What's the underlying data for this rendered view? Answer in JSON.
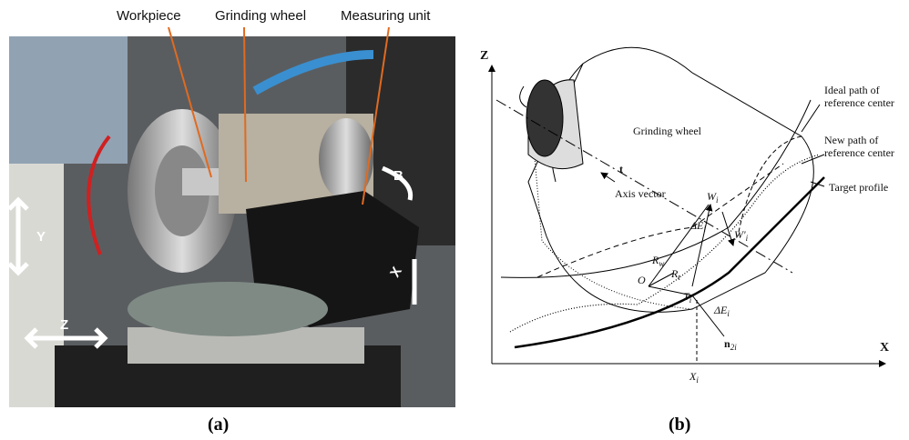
{
  "panel_a": {
    "labels": [
      "Workpiece",
      "Grinding wheel",
      "Measuring unit"
    ],
    "axes": [
      "Y",
      "Z",
      "X",
      "B"
    ],
    "caption": "(a)"
  },
  "panel_b": {
    "axes": [
      "Z",
      "X"
    ],
    "wheel_label": "Grinding wheel",
    "axis_vector_label": "Axis vector",
    "t": "t",
    "ideal_path": [
      "Ideal path of",
      "reference center"
    ],
    "new_path": [
      "New path of",
      "reference center"
    ],
    "target_profile": "Target profile",
    "symbols": [
      {
        "base": "W",
        "sub": "i"
      },
      {
        "base": "ΔE",
        "sub": "i"
      },
      {
        "base": "W'",
        "sub": "i"
      },
      {
        "base": "R",
        "sub": "w"
      },
      {
        "base": "O",
        "sub": ""
      },
      {
        "base": "R",
        "sub": "t"
      },
      {
        "base": "T",
        "sub": "i"
      },
      {
        "base": "ΔE",
        "sub": "i"
      },
      {
        "base": "n",
        "sub": "2i"
      },
      {
        "base": "X",
        "sub": "i"
      }
    ],
    "caption": "(b)"
  }
}
